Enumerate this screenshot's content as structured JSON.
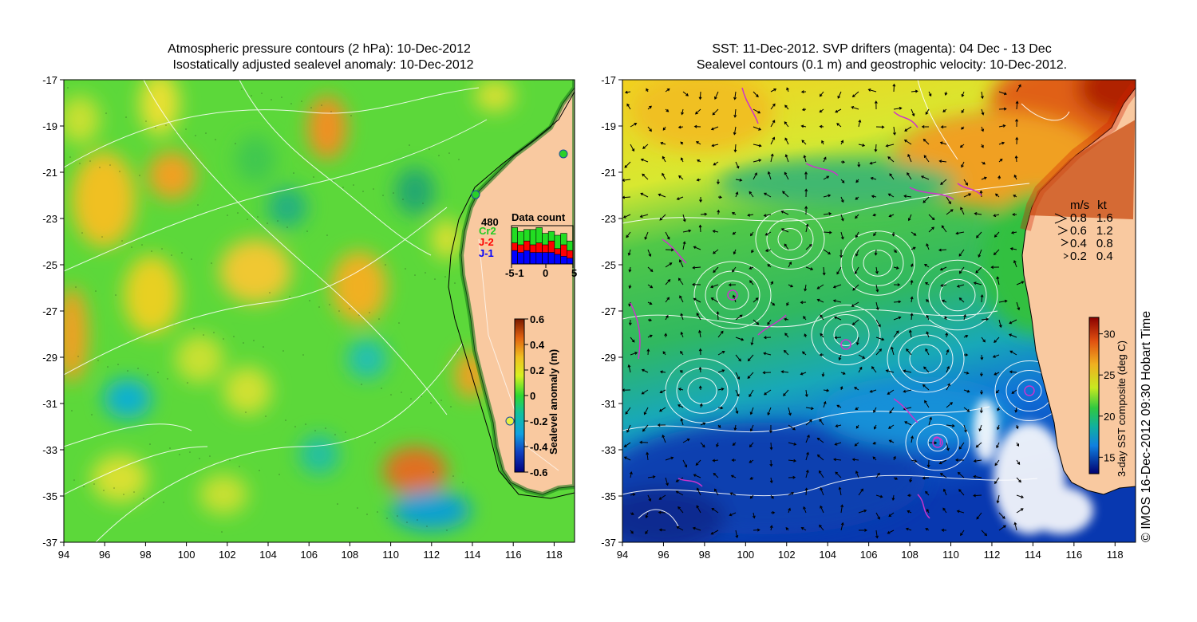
{
  "left_panel": {
    "title_line1": "Atmospheric pressure contours (2 hPa): 10-Dec-2012",
    "title_line2": "Isostatically adjusted sealevel anomaly: 10-Dec-2012",
    "colorbar": {
      "label": "Sealevel anomaly (m)",
      "ticks": [
        "0.6",
        "0.4",
        "0.2",
        "0",
        "-0.2",
        "-0.4",
        "-0.6"
      ],
      "range": [
        -0.6,
        0.6
      ]
    },
    "data_count": {
      "title": "Data count",
      "max_label": "480",
      "legend": [
        {
          "name": "Cr2",
          "color": "#22cc22"
        },
        {
          "name": "J-2",
          "color": "#ff0000"
        },
        {
          "name": "J-1",
          "color": "#0000ff"
        }
      ],
      "x_ticks": [
        "-5",
        "-1",
        "0",
        "5"
      ]
    }
  },
  "right_panel": {
    "title_line1": "SST: 11-Dec-2012. SVP drifters (magenta): 04 Dec - 13 Dec",
    "title_line2": "Sealevel contours (0.1 m) and geostrophic velocity: 10-Dec-2012.",
    "velocity_legend": {
      "header": [
        "m/s",
        "kt"
      ],
      "rows": [
        [
          "0.8",
          "1.6"
        ],
        [
          "0.6",
          "1.2"
        ],
        [
          "0.4",
          "0.8"
        ],
        [
          "0.2",
          "0.4"
        ]
      ]
    },
    "colorbar": {
      "label": "3-day SST composite (deg C)",
      "ticks": [
        "30",
        "25",
        "20",
        "15"
      ],
      "range": [
        13,
        32
      ]
    }
  },
  "axes": {
    "lon_ticks": [
      "94",
      "96",
      "98",
      "100",
      "102",
      "104",
      "106",
      "108",
      "110",
      "112",
      "114",
      "116",
      "118"
    ],
    "lat_ticks": [
      "-17",
      "-19",
      "-21",
      "-23",
      "-25",
      "-27",
      "-29",
      "-31",
      "-33",
      "-35",
      "-37"
    ],
    "lon_range": [
      94,
      119
    ],
    "lat_range": [
      -37,
      -17
    ]
  },
  "credit": "© IMOS 16-Dec-2012 09:30 Hobart Time",
  "colors": {
    "land": "#f9c9a0",
    "drifter": "#cc33cc",
    "contour": "#ffffff"
  }
}
